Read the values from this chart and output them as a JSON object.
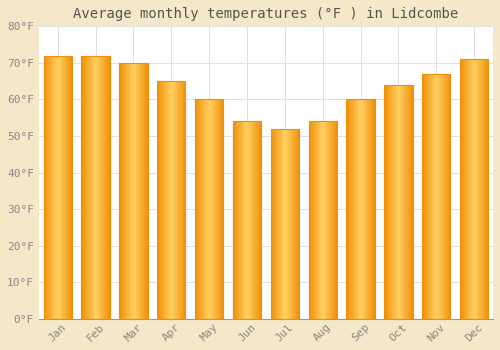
{
  "months": [
    "Jan",
    "Feb",
    "Mar",
    "Apr",
    "May",
    "Jun",
    "Jul",
    "Aug",
    "Sep",
    "Oct",
    "Nov",
    "Dec"
  ],
  "values": [
    72,
    72,
    70,
    65,
    60,
    54,
    52,
    54,
    60,
    64,
    67,
    71
  ],
  "bar_color_center": "#FFD060",
  "bar_color_edge": "#F0900A",
  "title": "Average monthly temperatures (°F ) in Lidcombe",
  "ylim": [
    0,
    80
  ],
  "yticks": [
    0,
    10,
    20,
    30,
    40,
    50,
    60,
    70,
    80
  ],
  "ytick_labels": [
    "0°F",
    "10°F",
    "20°F",
    "30°F",
    "40°F",
    "50°F",
    "60°F",
    "70°F",
    "80°F"
  ],
  "background_color": "#ffffff",
  "fig_background_color": "#f5e8c8",
  "grid_color": "#e0e0e0",
  "title_fontsize": 10,
  "tick_fontsize": 8,
  "title_color": "#555555",
  "tick_color": "#888888"
}
